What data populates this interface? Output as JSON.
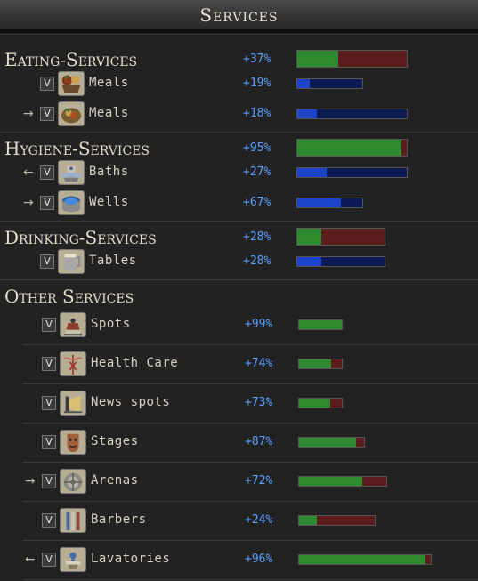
{
  "window": {
    "title": "Services"
  },
  "colors": {
    "green": "#2e8a2e",
    "red": "#5a1c1c",
    "blue": "#1c44c8",
    "navy": "#0c1a55",
    "percent": "#5aa0ff"
  },
  "sections": {
    "eating": {
      "title": "Eating-Services",
      "percent": "+37%",
      "level": 0.37,
      "rows": [
        {
          "label": "Meals",
          "percent": "+19%",
          "level": 0.19,
          "toggle": "V",
          "arrow": "",
          "icon": "food-basket-icon"
        },
        {
          "label": "Meals",
          "percent": "+18%",
          "level": 0.18,
          "toggle": "V",
          "arrow": "→",
          "icon": "food-plate-icon"
        }
      ]
    },
    "hygiene": {
      "title": "Hygiene-Services",
      "percent": "+95%",
      "level": 0.95,
      "rows": [
        {
          "label": "Baths",
          "percent": "+27%",
          "level": 0.27,
          "toggle": "V",
          "arrow": "←",
          "icon": "bath-icon"
        },
        {
          "label": "Wells",
          "percent": "+67%",
          "level": 0.67,
          "toggle": "V",
          "arrow": "→",
          "icon": "well-icon"
        }
      ]
    },
    "drinking": {
      "title": "Drinking-Services",
      "percent": "+28%",
      "level": 0.28,
      "rows": [
        {
          "label": "Tables",
          "percent": "+28%",
          "level": 0.28,
          "toggle": "V",
          "arrow": "",
          "icon": "tankard-icon"
        }
      ]
    },
    "other": {
      "title": "Other Services",
      "rows": [
        {
          "label": "Spots",
          "percent": "+99%",
          "level": 0.99,
          "toggle": "V",
          "arrow": "",
          "icon": "spot-icon"
        },
        {
          "label": "Health Care",
          "percent": "+74%",
          "level": 0.74,
          "toggle": "V",
          "arrow": "",
          "icon": "caduceus-icon"
        },
        {
          "label": "News spots",
          "percent": "+73%",
          "level": 0.73,
          "toggle": "V",
          "arrow": "",
          "icon": "megaphone-icon"
        },
        {
          "label": "Stages",
          "percent": "+87%",
          "level": 0.87,
          "toggle": "V",
          "arrow": "",
          "icon": "theater-mask-icon"
        },
        {
          "label": "Arenas",
          "percent": "+72%",
          "level": 0.72,
          "toggle": "V",
          "arrow": "→",
          "icon": "arena-icon"
        },
        {
          "label": "Barbers",
          "percent": "+24%",
          "level": 0.24,
          "toggle": "V",
          "arrow": "",
          "icon": "barber-tools-icon"
        },
        {
          "label": "Lavatories",
          "percent": "+96%",
          "level": 0.96,
          "toggle": "V",
          "arrow": "←",
          "icon": "lavatory-icon"
        }
      ]
    }
  }
}
